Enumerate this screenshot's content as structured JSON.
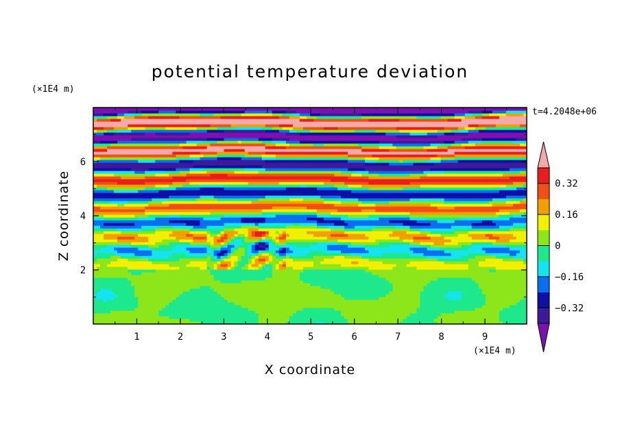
{
  "chart_data": {
    "type": "heatmap",
    "title": "potential temperature deviation",
    "xlabel": "X coordinate",
    "ylabel": "Z coordinate",
    "x_unit": "(×1E4 m)",
    "y_unit": "(×1E4 m)",
    "time_label": "t=4.2048e+06",
    "xlim": [
      0,
      9.96
    ],
    "ylim": [
      0,
      8
    ],
    "x_ticks": [
      "1",
      "2",
      "3",
      "4",
      "5",
      "6",
      "7",
      "8",
      "9"
    ],
    "y_ticks": [
      "2",
      "4",
      "6"
    ],
    "colorbar": {
      "labels": [
        "0.32",
        "0.16",
        "0",
        "−0.16",
        "−0.32"
      ],
      "label_values": [
        0.32,
        0.16,
        0,
        -0.16,
        -0.32
      ],
      "levels": [
        -0.4,
        -0.32,
        -0.24,
        -0.16,
        -0.08,
        0,
        0.08,
        0.16,
        0.24,
        0.32,
        0.4
      ],
      "under_color": "#7a12b0",
      "over_color": "#f4aaaa",
      "colors": [
        "#3c1a9a",
        "#0f0fa5",
        "#0a6ef0",
        "#14e4f0",
        "#1ee88c",
        "#8ce61a",
        "#f0f000",
        "#f0a000",
        "#f05014",
        "#e81e1e"
      ]
    }
  }
}
